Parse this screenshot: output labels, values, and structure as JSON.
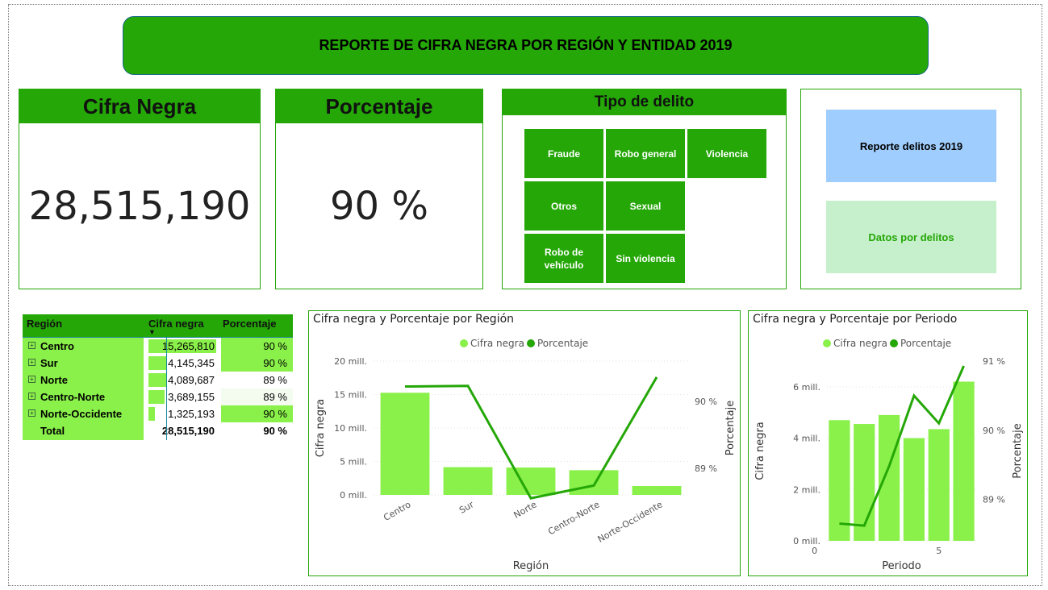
{
  "header": {
    "title": "REPORTE DE CIFRA NEGRA POR REGIÓN Y ENTIDAD 2019"
  },
  "kpis": {
    "cifra_label": "Cifra Negra",
    "cifra_value": "28,515,190",
    "pct_label": "Porcentaje",
    "pct_value": "90 %"
  },
  "tipo": {
    "title": "Tipo de delito",
    "tiles": [
      "Fraude",
      "Robo general",
      "Violencia",
      "Otros",
      "Sexual",
      "Robo de vehículo",
      "Sin violencia"
    ]
  },
  "nav": {
    "reporte": "Reporte delitos 2019",
    "datos": "Datos por delitos",
    "reporte_color": "#9fcdfd",
    "datos_color": "#c6efcb"
  },
  "matrix": {
    "headers": [
      "Región",
      "Cifra negra",
      "Porcentaje"
    ],
    "rows": [
      {
        "region": "Centro",
        "cifra": "15,265,810",
        "pct": "90 %",
        "share": 1.0
      },
      {
        "region": "Sur",
        "cifra": "4,145,345",
        "pct": "90 %",
        "share": 0.27
      },
      {
        "region": "Norte",
        "cifra": "4,089,687",
        "pct": "89 %",
        "share": 0.27
      },
      {
        "region": "Centro-Norte",
        "cifra": "3,689,155",
        "pct": "89 %",
        "share": 0.24
      },
      {
        "region": "Norte-Occidente",
        "cifra": "1,325,193",
        "pct": "90 %",
        "share": 0.09
      }
    ],
    "total": {
      "label": "Total",
      "cifra": "28,515,190",
      "pct": "90 %"
    }
  },
  "colors": {
    "bar": "#8af04a",
    "line": "#24a707",
    "accent": "#24a707"
  },
  "chart_data": [
    {
      "type": "bar",
      "title": "Cifra negra y Porcentaje por Región",
      "xlabel": "Región",
      "ylabel": "Cifra negra",
      "y2label": "Porcentaje",
      "legend": [
        "Cifra negra",
        "Porcentaje"
      ],
      "categories": [
        "Centro",
        "Sur",
        "Norte",
        "Centro-Norte",
        "Norte-Occidente"
      ],
      "series": [
        {
          "name": "Cifra negra",
          "values": [
            15265810,
            4145345,
            4089687,
            3689155,
            1325193
          ]
        },
        {
          "name": "Porcentaje",
          "values": [
            90.22,
            90.23,
            88.55,
            88.74,
            90.36
          ]
        }
      ],
      "yticks": [
        "0 mill.",
        "5 mill.",
        "10 mill.",
        "15 mill.",
        "20 mill."
      ],
      "ylim": [
        0,
        20000000
      ],
      "y2ticks": [
        "89 %",
        "90 %"
      ],
      "y2lim": [
        88.6,
        90.6
      ]
    },
    {
      "type": "bar",
      "title": "Cifra negra y Porcentaje por Periodo",
      "xlabel": "Periodo",
      "ylabel": "Cifra negra",
      "y2label": "Porcentaje",
      "legend": [
        "Cifra negra",
        "Porcentaje"
      ],
      "x": [
        1,
        2,
        3,
        4,
        5,
        6
      ],
      "series": [
        {
          "name": "Cifra negra",
          "values": [
            4700000,
            4550000,
            4900000,
            4000000,
            4350000,
            6200000
          ]
        },
        {
          "name": "Porcentaje",
          "values": [
            88.65,
            88.62,
            89.48,
            90.5,
            90.1,
            90.93
          ]
        }
      ],
      "xticks": [
        "0",
        "5"
      ],
      "yticks": [
        "0 mill.",
        "2 mill.",
        "4 mill.",
        "6 mill."
      ],
      "ylim": [
        0,
        7000000
      ],
      "y2ticks": [
        "89 %",
        "90 %",
        "91 %"
      ],
      "y2lim": [
        88.4,
        91.0
      ]
    }
  ]
}
